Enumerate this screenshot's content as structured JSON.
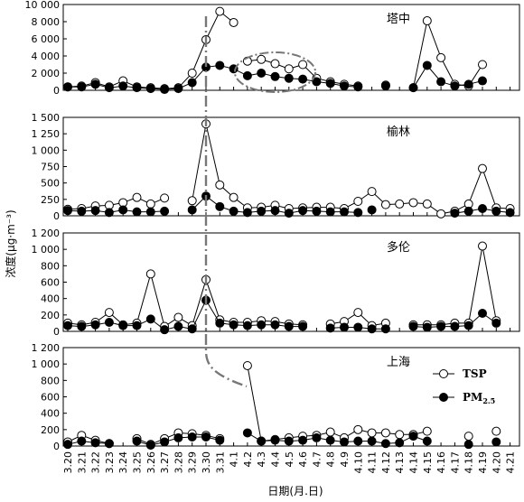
{
  "chart_data": {
    "type": "line",
    "xlabel": "日期(月.日)",
    "ylabel": "浓度(μg·m⁻³)",
    "x_ticks": [
      "3.20",
      "3.21",
      "3.22",
      "3.23",
      "3.24",
      "3.25",
      "3.26",
      "3.27",
      "3.28",
      "3.29",
      "3.30",
      "3.31",
      "4.1",
      "4.2",
      "4.3",
      "4.4",
      "4.5",
      "4.6",
      "4.7",
      "4.8",
      "4.9",
      "4.10",
      "4.11",
      "4.12",
      "4.13",
      "4.14",
      "4.15",
      "4.16",
      "4.17",
      "4.18",
      "4.19",
      "4.20",
      "4.21"
    ],
    "legend": [
      {
        "name": "TSP",
        "marker": "open-circle"
      },
      {
        "name": "PM",
        "sub": "2.5",
        "marker": "filled-circle"
      }
    ],
    "annotations": {
      "event_line_date": "3.30",
      "highlight_ellipse_panel": "塔中",
      "highlight_ellipse_dates": [
        "4.2",
        "4.6"
      ]
    },
    "panels": [
      {
        "name": "塔中",
        "ylim": [
          0,
          10000
        ],
        "y_ticks": [
          "0",
          "2 000",
          "4 000",
          "6 000",
          "8 000",
          "10 000"
        ],
        "y_tick_values": [
          0,
          2000,
          4000,
          6000,
          8000,
          10000
        ],
        "tsp": [
          [
            [
              "3.20",
              400
            ],
            [
              "3.21",
              500
            ],
            [
              "3.22",
              900
            ],
            [
              "3.23",
              400
            ],
            [
              "3.24",
              1100
            ],
            [
              "3.25",
              400
            ],
            [
              "3.26",
              300
            ],
            [
              "3.27",
              200
            ],
            [
              "3.28",
              300
            ],
            [
              "3.29",
              2000
            ],
            [
              "3.30",
              5900
            ],
            [
              "3.31",
              9200
            ],
            [
              "4.1",
              7900
            ]
          ],
          [
            [
              "4.2",
              3400
            ],
            [
              "4.3",
              3600
            ],
            [
              "4.4",
              3100
            ],
            [
              "4.5",
              2500
            ],
            [
              "4.6",
              3000
            ],
            [
              "4.7",
              1400
            ],
            [
              "4.8",
              1000
            ],
            [
              "4.9",
              700
            ],
            [
              "4.10",
              500
            ]
          ],
          [
            [
              "4.12",
              600
            ]
          ],
          [
            [
              "4.14",
              300
            ],
            [
              "4.15",
              8100
            ],
            [
              "4.16",
              3800
            ],
            [
              "4.17",
              700
            ],
            [
              "4.18",
              500
            ],
            [
              "4.19",
              3000
            ]
          ]
        ],
        "pm25": [
          [
            [
              "3.20",
              400
            ],
            [
              "3.21",
              400
            ],
            [
              "3.22",
              700
            ],
            [
              "3.23",
              300
            ],
            [
              "3.24",
              500
            ],
            [
              "3.25",
              300
            ],
            [
              "3.26",
              200
            ],
            [
              "3.27",
              100
            ],
            [
              "3.28",
              200
            ],
            [
              "3.29",
              900
            ],
            [
              "3.30",
              2700
            ],
            [
              "3.31",
              2900
            ],
            [
              "4.1",
              2500
            ],
            [
              "4.2",
              1700
            ],
            [
              "4.3",
              2000
            ],
            [
              "4.4",
              1600
            ],
            [
              "4.5",
              1400
            ],
            [
              "4.6",
              1300
            ],
            [
              "4.7",
              1000
            ],
            [
              "4.8",
              800
            ],
            [
              "4.9",
              500
            ],
            [
              "4.10",
              400
            ]
          ],
          [
            [
              "4.12",
              500
            ]
          ],
          [
            [
              "4.14",
              300
            ],
            [
              "4.15",
              2900
            ],
            [
              "4.16",
              1000
            ],
            [
              "4.17",
              500
            ],
            [
              "4.18",
              700
            ],
            [
              "4.19",
              1100
            ]
          ]
        ]
      },
      {
        "name": "榆林",
        "ylim": [
          0,
          1500
        ],
        "y_ticks": [
          "0",
          "250",
          "500",
          "750",
          "1 000",
          "1 250",
          "1 500"
        ],
        "y_tick_values": [
          0,
          250,
          500,
          750,
          1000,
          1250,
          1500
        ],
        "tsp": [
          [
            [
              "3.20",
              100
            ],
            [
              "3.21",
              110
            ],
            [
              "3.22",
              150
            ],
            [
              "3.23",
              160
            ],
            [
              "3.24",
              200
            ],
            [
              "3.25",
              280
            ],
            [
              "3.26",
              180
            ],
            [
              "3.27",
              270
            ]
          ],
          [
            [
              "3.29",
              230
            ],
            [
              "3.30",
              1400
            ],
            [
              "3.31",
              470
            ],
            [
              "4.1",
              280
            ],
            [
              "4.2",
              120
            ],
            [
              "4.3",
              130
            ],
            [
              "4.4",
              160
            ],
            [
              "4.5",
              110
            ],
            [
              "4.6",
              120
            ],
            [
              "4.7",
              130
            ],
            [
              "4.8",
              130
            ],
            [
              "4.9",
              110
            ],
            [
              "4.10",
              220
            ],
            [
              "4.11",
              370
            ],
            [
              "4.12",
              170
            ],
            [
              "4.13",
              180
            ],
            [
              "4.14",
              200
            ],
            [
              "4.15",
              180
            ],
            [
              "4.16",
              30
            ],
            [
              "4.17",
              70
            ],
            [
              "4.18",
              180
            ],
            [
              "4.19",
              720
            ],
            [
              "4.20",
              120
            ],
            [
              "4.21",
              110
            ]
          ]
        ],
        "pm25": [
          [
            [
              "3.20",
              80
            ],
            [
              "3.21",
              70
            ],
            [
              "3.22",
              80
            ],
            [
              "3.23",
              50
            ],
            [
              "3.24",
              90
            ],
            [
              "3.25",
              60
            ],
            [
              "3.26",
              60
            ],
            [
              "3.27",
              70
            ]
          ],
          [
            [
              "3.29",
              90
            ],
            [
              "3.30",
              300
            ],
            [
              "3.31",
              140
            ],
            [
              "4.1",
              70
            ],
            [
              "4.2",
              50
            ],
            [
              "4.3",
              70
            ],
            [
              "4.4",
              80
            ],
            [
              "4.5",
              40
            ],
            [
              "4.6",
              80
            ],
            [
              "4.7",
              70
            ],
            [
              "4.8",
              60
            ],
            [
              "4.9",
              60
            ],
            [
              "4.10",
              50
            ]
          ],
          [
            [
              "4.11",
              90
            ]
          ],
          [
            [
              "4.17",
              40
            ],
            [
              "4.18",
              70
            ],
            [
              "4.19",
              110
            ],
            [
              "4.20",
              70
            ],
            [
              "4.21",
              50
            ]
          ]
        ]
      },
      {
        "name": "多伦",
        "ylim": [
          0,
          1200
        ],
        "y_ticks": [
          "0",
          "200",
          "400",
          "600",
          "800",
          "1 000",
          "1 200"
        ],
        "y_tick_values": [
          0,
          200,
          400,
          600,
          800,
          1000,
          1200
        ],
        "tsp": [
          [
            [
              "3.20",
              100
            ],
            [
              "3.21",
              80
            ],
            [
              "3.22",
              110
            ],
            [
              "3.23",
              230
            ],
            [
              "3.24",
              80
            ],
            [
              "3.25",
              100
            ],
            [
              "3.26",
              700
            ],
            [
              "3.27",
              60
            ],
            [
              "3.28",
              170
            ],
            [
              "3.29",
              70
            ],
            [
              "3.30",
              630
            ],
            [
              "3.31",
              140
            ],
            [
              "4.1",
              110
            ],
            [
              "4.2",
              110
            ],
            [
              "4.3",
              130
            ],
            [
              "4.4",
              120
            ],
            [
              "4.5",
              90
            ],
            [
              "4.6",
              80
            ]
          ],
          [
            [
              "4.8",
              90
            ],
            [
              "4.9",
              120
            ],
            [
              "4.10",
              230
            ],
            [
              "4.11",
              70
            ],
            [
              "4.12",
              100
            ]
          ],
          [
            [
              "4.14",
              80
            ],
            [
              "4.15",
              80
            ],
            [
              "4.16",
              80
            ],
            [
              "4.17",
              100
            ],
            [
              "4.18",
              100
            ],
            [
              "4.19",
              1040
            ],
            [
              "4.20",
              130
            ]
          ]
        ],
        "pm25": [
          [
            [
              "3.20",
              70
            ],
            [
              "3.21",
              60
            ],
            [
              "3.22",
              80
            ],
            [
              "3.23",
              110
            ],
            [
              "3.24",
              70
            ],
            [
              "3.25",
              70
            ],
            [
              "3.26",
              150
            ],
            [
              "3.27",
              20
            ],
            [
              "3.28",
              60
            ],
            [
              "3.29",
              30
            ],
            [
              "3.30",
              380
            ],
            [
              "3.31",
              100
            ],
            [
              "4.1",
              80
            ],
            [
              "4.2",
              70
            ],
            [
              "4.3",
              80
            ],
            [
              "4.4",
              80
            ],
            [
              "4.5",
              60
            ],
            [
              "4.6",
              60
            ]
          ],
          [
            [
              "4.8",
              40
            ],
            [
              "4.9",
              50
            ],
            [
              "4.10",
              50
            ],
            [
              "4.11",
              30
            ],
            [
              "4.12",
              30
            ]
          ],
          [
            [
              "4.14",
              60
            ],
            [
              "4.15",
              50
            ],
            [
              "4.16",
              60
            ],
            [
              "4.17",
              60
            ],
            [
              "4.18",
              70
            ],
            [
              "4.19",
              220
            ],
            [
              "4.20",
              100
            ]
          ]
        ]
      },
      {
        "name": "上海",
        "ylim": [
          0,
          1200
        ],
        "y_ticks": [
          "0",
          "200",
          "400",
          "600",
          "800",
          "1 000",
          "1 200"
        ],
        "y_tick_values": [
          0,
          200,
          400,
          600,
          800,
          1000,
          1200
        ],
        "tsp": [
          [
            [
              "3.20",
              50
            ],
            [
              "3.21",
              130
            ],
            [
              "3.22",
              70
            ],
            [
              "3.23",
              30
            ]
          ],
          [
            [
              "3.25",
              90
            ],
            [
              "3.26",
              20
            ],
            [
              "3.27",
              90
            ],
            [
              "3.28",
              160
            ],
            [
              "3.29",
              150
            ],
            [
              "3.30",
              130
            ],
            [
              "3.31",
              90
            ]
          ],
          [
            [
              "4.2",
              980
            ],
            [
              "4.3",
              60
            ],
            [
              "4.4",
              80
            ],
            [
              "4.5",
              100
            ],
            [
              "4.6",
              120
            ],
            [
              "4.7",
              130
            ],
            [
              "4.8",
              170
            ],
            [
              "4.9",
              100
            ],
            [
              "4.10",
              200
            ],
            [
              "4.11",
              160
            ],
            [
              "4.12",
              160
            ],
            [
              "4.13",
              140
            ],
            [
              "4.14",
              140
            ],
            [
              "4.15",
              180
            ]
          ],
          [
            [
              "4.18",
              120
            ]
          ],
          [
            [
              "4.20",
              180
            ]
          ]
        ],
        "pm25": [
          [
            [
              "3.20",
              20
            ],
            [
              "3.21",
              60
            ],
            [
              "3.22",
              40
            ],
            [
              "3.23",
              30
            ]
          ],
          [
            [
              "3.25",
              60
            ],
            [
              "3.26",
              10
            ],
            [
              "3.27",
              50
            ],
            [
              "3.28",
              100
            ],
            [
              "3.29",
              110
            ],
            [
              "3.30",
              110
            ],
            [
              "3.31",
              70
            ]
          ],
          [
            [
              "4.2",
              160
            ],
            [
              "4.3",
              60
            ],
            [
              "4.4",
              70
            ],
            [
              "4.5",
              60
            ],
            [
              "4.6",
              70
            ],
            [
              "4.7",
              100
            ],
            [
              "4.8",
              70
            ],
            [
              "4.9",
              50
            ],
            [
              "4.10",
              60
            ],
            [
              "4.11",
              60
            ],
            [
              "4.12",
              30
            ],
            [
              "4.13",
              40
            ],
            [
              "4.14",
              120
            ],
            [
              "4.15",
              60
            ]
          ],
          [
            [
              "4.18",
              20
            ]
          ],
          [
            [
              "4.20",
              50
            ]
          ]
        ]
      }
    ]
  }
}
